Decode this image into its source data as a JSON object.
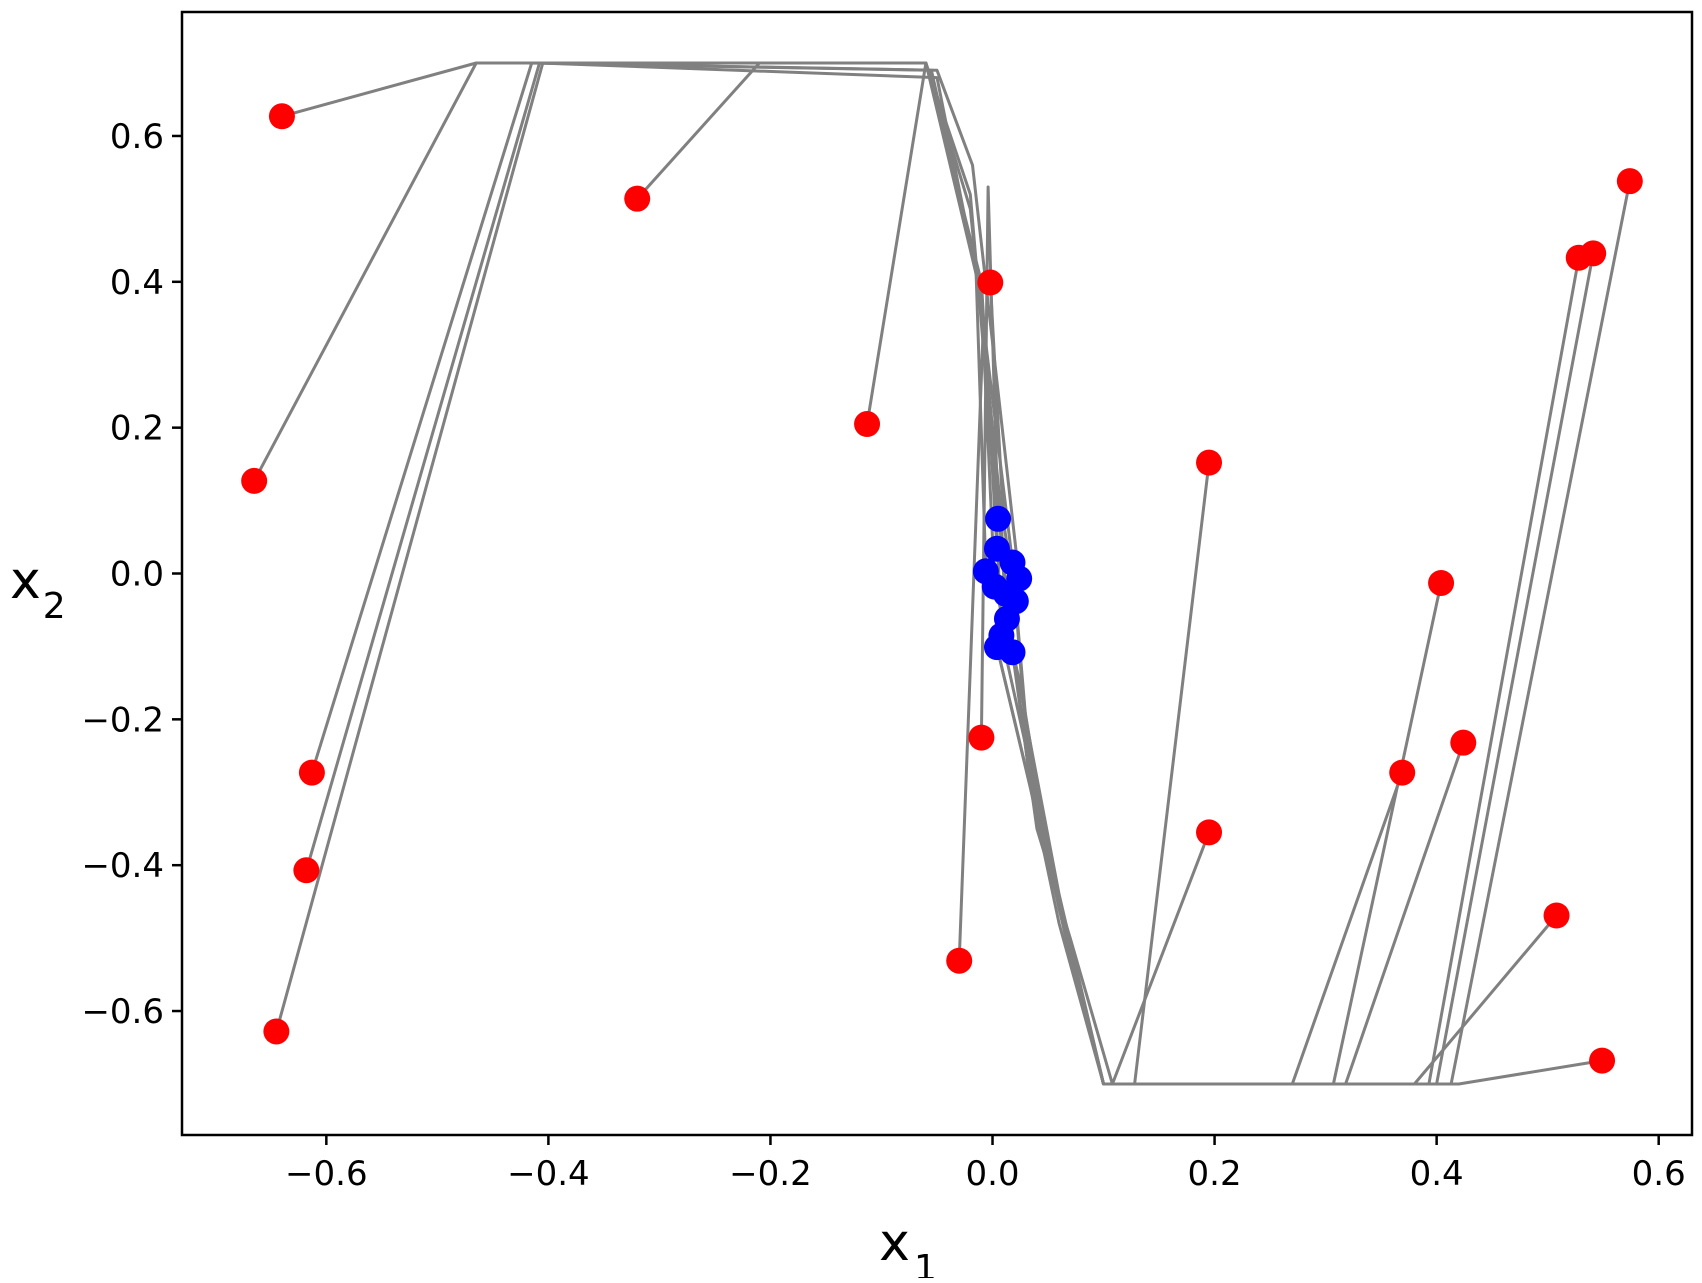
{
  "chart_data": {
    "type": "scatter",
    "title": "",
    "xlabel": "x",
    "xlabel_subscript": "1",
    "ylabel": "x",
    "ylabel_subscript": "2",
    "xlim": [
      -0.73,
      0.63
    ],
    "ylim": [
      -0.77,
      0.77
    ],
    "x_ticks": [
      -0.6,
      -0.4,
      -0.2,
      0.0,
      0.2,
      0.4,
      0.6
    ],
    "x_tick_labels": [
      "−0.6",
      "−0.4",
      "−0.2",
      "0.0",
      "0.2",
      "0.4",
      "0.6"
    ],
    "y_ticks": [
      -0.6,
      -0.4,
      -0.2,
      0.0,
      0.2,
      0.4,
      0.6
    ],
    "y_tick_labels": [
      "−0.6",
      "−0.4",
      "−0.2",
      "0.0",
      "0.2",
      "0.4",
      "0.6"
    ],
    "grid": false,
    "colors": {
      "start": "#ff0000",
      "end": "#0000ff",
      "path": "#808080"
    },
    "start_points": [
      {
        "x": -0.64,
        "y": 0.627
      },
      {
        "x": -0.665,
        "y": 0.127
      },
      {
        "x": -0.613,
        "y": -0.273
      },
      {
        "x": -0.618,
        "y": -0.407
      },
      {
        "x": -0.645,
        "y": -0.628
      },
      {
        "x": -0.32,
        "y": 0.514
      },
      {
        "x": -0.113,
        "y": 0.205
      },
      {
        "x": -0.002,
        "y": 0.399
      },
      {
        "x": -0.01,
        "y": -0.225
      },
      {
        "x": -0.03,
        "y": -0.531
      },
      {
        "x": 0.195,
        "y": 0.152
      },
      {
        "x": 0.195,
        "y": -0.355
      },
      {
        "x": 0.369,
        "y": -0.273
      },
      {
        "x": 0.404,
        "y": -0.013
      },
      {
        "x": 0.424,
        "y": -0.232
      },
      {
        "x": 0.508,
        "y": -0.469
      },
      {
        "x": 0.528,
        "y": 0.433
      },
      {
        "x": 0.541,
        "y": 0.439
      },
      {
        "x": 0.574,
        "y": 0.538
      },
      {
        "x": 0.549,
        "y": -0.668
      }
    ],
    "end_points": [
      {
        "x": 0.005,
        "y": 0.075
      },
      {
        "x": 0.004,
        "y": 0.034
      },
      {
        "x": -0.006,
        "y": 0.003
      },
      {
        "x": 0.018,
        "y": 0.015
      },
      {
        "x": 0.024,
        "y": -0.007
      },
      {
        "x": 0.002,
        "y": -0.018
      },
      {
        "x": 0.012,
        "y": -0.028
      },
      {
        "x": 0.021,
        "y": -0.038
      },
      {
        "x": 0.013,
        "y": -0.062
      },
      {
        "x": 0.008,
        "y": -0.085
      },
      {
        "x": 0.004,
        "y": -0.101
      },
      {
        "x": 0.018,
        "y": -0.108
      }
    ],
    "trajectories": [
      [
        [
          -0.64,
          0.627
        ],
        [
          -0.465,
          0.7
        ],
        [
          -0.06,
          0.7
        ],
        [
          -0.01,
          0.4
        ],
        [
          0.004,
          0.034
        ]
      ],
      [
        [
          -0.665,
          0.127
        ],
        [
          -0.465,
          0.7
        ],
        [
          -0.06,
          0.7
        ],
        [
          -0.02,
          0.52
        ],
        [
          0.005,
          0.075
        ]
      ],
      [
        [
          -0.613,
          -0.273
        ],
        [
          -0.415,
          0.7
        ],
        [
          -0.055,
          0.69
        ],
        [
          -0.015,
          0.42
        ],
        [
          -0.006,
          0.003
        ]
      ],
      [
        [
          -0.618,
          -0.407
        ],
        [
          -0.408,
          0.7
        ],
        [
          -0.05,
          0.68
        ],
        [
          -0.012,
          0.39
        ],
        [
          0.018,
          0.015
        ]
      ],
      [
        [
          -0.645,
          -0.628
        ],
        [
          -0.405,
          0.7
        ],
        [
          -0.05,
          0.69
        ],
        [
          -0.018,
          0.56
        ],
        [
          0.024,
          -0.007
        ]
      ],
      [
        [
          -0.32,
          0.514
        ],
        [
          -0.21,
          0.7
        ],
        [
          -0.06,
          0.7
        ],
        [
          -0.01,
          0.38
        ],
        [
          0.002,
          -0.018
        ]
      ],
      [
        [
          -0.113,
          0.205
        ],
        [
          -0.06,
          0.7
        ],
        [
          -0.02,
          0.5
        ],
        [
          0.006,
          0.11
        ],
        [
          0.012,
          -0.028
        ]
      ],
      [
        [
          -0.002,
          0.399
        ],
        [
          0.01,
          0.07
        ],
        [
          0.021,
          -0.038
        ]
      ],
      [
        [
          -0.01,
          -0.225
        ],
        [
          -0.004,
          0.53
        ],
        [
          0.004,
          0.12
        ],
        [
          0.013,
          -0.062
        ]
      ],
      [
        [
          -0.03,
          -0.531
        ],
        [
          -0.008,
          0.35
        ],
        [
          0.002,
          0.13
        ],
        [
          0.008,
          -0.085
        ]
      ],
      [
        [
          0.195,
          0.152
        ],
        [
          0.128,
          -0.7
        ],
        [
          0.1,
          -0.7
        ],
        [
          0.06,
          -0.48
        ],
        [
          0.035,
          -0.3
        ],
        [
          0.004,
          -0.101
        ]
      ],
      [
        [
          0.195,
          -0.355
        ],
        [
          0.108,
          -0.7
        ],
        [
          0.07,
          -0.5
        ],
        [
          0.04,
          -0.35
        ],
        [
          0.018,
          -0.108
        ]
      ],
      [
        [
          0.369,
          -0.273
        ],
        [
          0.27,
          -0.7
        ],
        [
          0.1,
          -0.7
        ],
        [
          0.06,
          -0.46
        ],
        [
          0.03,
          -0.22
        ],
        [
          0.018,
          0.015
        ]
      ],
      [
        [
          0.404,
          -0.013
        ],
        [
          0.307,
          -0.7
        ],
        [
          0.1,
          -0.7
        ],
        [
          0.055,
          -0.42
        ],
        [
          0.028,
          -0.18
        ],
        [
          0.013,
          -0.062
        ]
      ],
      [
        [
          0.424,
          -0.232
        ],
        [
          0.318,
          -0.7
        ],
        [
          0.1,
          -0.7
        ],
        [
          0.065,
          -0.48
        ],
        [
          0.032,
          -0.25
        ],
        [
          0.008,
          -0.085
        ]
      ],
      [
        [
          0.508,
          -0.469
        ],
        [
          0.38,
          -0.7
        ],
        [
          0.1,
          -0.7
        ],
        [
          0.05,
          -0.38
        ],
        [
          0.025,
          -0.15
        ],
        [
          0.002,
          -0.018
        ]
      ],
      [
        [
          0.528,
          0.433
        ],
        [
          0.393,
          -0.7
        ],
        [
          0.1,
          -0.7
        ],
        [
          0.07,
          -0.52
        ],
        [
          0.035,
          -0.3
        ],
        [
          0.012,
          -0.028
        ]
      ],
      [
        [
          0.541,
          0.439
        ],
        [
          0.4,
          -0.7
        ],
        [
          0.1,
          -0.7
        ],
        [
          0.06,
          -0.44
        ],
        [
          0.03,
          -0.2
        ],
        [
          0.021,
          -0.038
        ]
      ],
      [
        [
          0.574,
          0.538
        ],
        [
          0.413,
          -0.7
        ],
        [
          0.1,
          -0.7
        ],
        [
          0.068,
          -0.5
        ],
        [
          0.04,
          -0.33
        ],
        [
          0.004,
          -0.101
        ]
      ],
      [
        [
          0.549,
          -0.668
        ],
        [
          0.42,
          -0.7
        ],
        [
          0.1,
          -0.7
        ],
        [
          0.072,
          -0.54
        ],
        [
          0.038,
          -0.31
        ],
        [
          0.018,
          -0.108
        ]
      ]
    ]
  }
}
